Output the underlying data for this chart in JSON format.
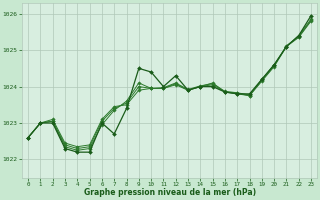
{
  "background_color": "#c8e8d0",
  "plot_bg_color": "#d8eee0",
  "grid_color": "#b0c8b8",
  "line_color1": "#1a5c1a",
  "line_color2": "#2d7a2d",
  "xlabel": "Graphe pression niveau de la mer (hPa)",
  "xlim": [
    -0.5,
    23.5
  ],
  "ylim": [
    1021.5,
    1026.3
  ],
  "yticks": [
    1022,
    1023,
    1024,
    1025,
    1026
  ],
  "xticks": [
    0,
    1,
    2,
    3,
    4,
    5,
    6,
    7,
    8,
    9,
    10,
    11,
    12,
    13,
    14,
    15,
    16,
    17,
    18,
    19,
    20,
    21,
    22,
    23
  ],
  "series1": [
    1022.6,
    1023.0,
    1023.0,
    1022.3,
    1022.2,
    1022.2,
    1023.0,
    1022.7,
    1023.4,
    1024.5,
    1024.4,
    1024.0,
    1024.3,
    1023.9,
    1024.0,
    1024.0,
    1023.85,
    1023.8,
    1023.8,
    1024.2,
    1024.6,
    1025.1,
    1025.4,
    1025.95
  ],
  "series2": [
    1022.6,
    1023.0,
    1023.05,
    1022.35,
    1022.25,
    1022.3,
    1022.95,
    1023.35,
    1023.6,
    1024.1,
    1023.95,
    1023.95,
    1024.05,
    1023.9,
    1024.0,
    1024.1,
    1023.85,
    1023.8,
    1023.75,
    1024.2,
    1024.6,
    1025.1,
    1025.4,
    1025.85
  ],
  "series3": [
    1022.6,
    1023.0,
    1023.05,
    1022.4,
    1022.3,
    1022.35,
    1023.05,
    1023.4,
    1023.55,
    1024.0,
    1023.95,
    1023.95,
    1024.08,
    1023.9,
    1024.0,
    1024.05,
    1023.85,
    1023.82,
    1023.75,
    1024.15,
    1024.55,
    1025.1,
    1025.35,
    1025.8
  ],
  "series4": [
    1022.6,
    1023.0,
    1023.1,
    1022.45,
    1022.35,
    1022.4,
    1023.1,
    1023.45,
    1023.5,
    1023.9,
    1023.95,
    1023.97,
    1024.1,
    1023.92,
    1024.02,
    1024.08,
    1023.87,
    1023.83,
    1023.77,
    1024.17,
    1024.57,
    1025.12,
    1025.37,
    1025.82
  ]
}
